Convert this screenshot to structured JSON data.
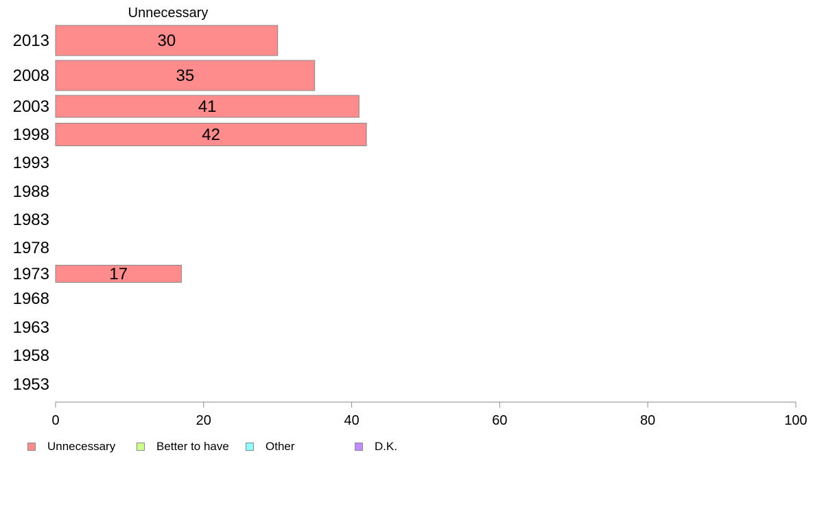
{
  "chart_data": {
    "type": "bar",
    "orientation": "horizontal",
    "column_header": "Unnecessary",
    "categories": [
      "2013",
      "2008",
      "2003",
      "1998",
      "1993",
      "1988",
      "1983",
      "1978",
      "1973",
      "1968",
      "1963",
      "1958",
      "1953"
    ],
    "series": [
      {
        "name": "Unnecessary",
        "color": "#ff8c8c",
        "values": [
          30,
          35,
          41,
          42,
          null,
          null,
          null,
          null,
          17,
          null,
          null,
          null,
          null
        ]
      },
      {
        "name": "Better to have",
        "color": "#ccff8c",
        "values": [
          null,
          null,
          null,
          null,
          null,
          null,
          null,
          null,
          null,
          null,
          null,
          null,
          null
        ]
      },
      {
        "name": "Other",
        "color": "#8cffff",
        "values": [
          null,
          null,
          null,
          null,
          null,
          null,
          null,
          null,
          null,
          null,
          null,
          null,
          null
        ]
      },
      {
        "name": "D.K.",
        "color": "#c08cff",
        "values": [
          null,
          null,
          null,
          null,
          null,
          null,
          null,
          null,
          null,
          null,
          null,
          null,
          null
        ]
      }
    ],
    "data_labels": [
      "30",
      "35",
      "41",
      "42",
      "",
      "",
      "",
      "",
      "17",
      "",
      "",
      "",
      ""
    ],
    "xlim": [
      0,
      100
    ],
    "xticks": [
      0,
      20,
      40,
      60,
      80,
      100
    ],
    "legend_position": "bottom",
    "grid": false
  }
}
